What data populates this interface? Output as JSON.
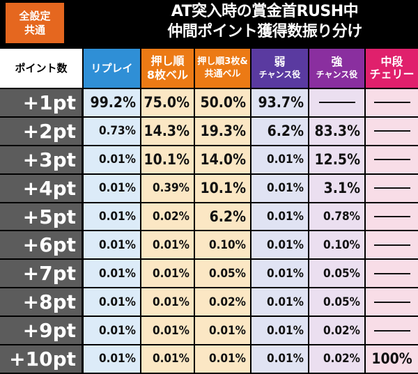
{
  "badge": {
    "line1": "全設定",
    "line2": "共通"
  },
  "title": {
    "line1": "AT突入時の賞金首RUSH中",
    "line2": "仲間ポイント獲得数振り分け"
  },
  "headers": {
    "label": "ポイント数",
    "replay": "リプレイ",
    "bell8_top": "押し順",
    "bell8_bottom": "8枚ベル",
    "bell3_top": "押し順3枚&",
    "bell3_bottom": "共通ベル",
    "weak_top": "弱",
    "weak_bottom": "チャンス役",
    "strong_top": "強",
    "strong_bottom": "チャンス役",
    "cherry_top": "中段",
    "cherry_bottom": "チェリー"
  },
  "rows": [
    {
      "pt": "+1pt",
      "replay": "99.2%",
      "bell8": "75.0%",
      "bell3": "50.0%",
      "weak": "93.7%",
      "strong": "",
      "cherry": ""
    },
    {
      "pt": "+2pt",
      "replay": "0.73%",
      "bell8": "14.3%",
      "bell3": "19.3%",
      "weak": "6.2%",
      "strong": "83.3%",
      "cherry": ""
    },
    {
      "pt": "+3pt",
      "replay": "0.01%",
      "bell8": "10.1%",
      "bell3": "14.0%",
      "weak": "0.01%",
      "strong": "12.5%",
      "cherry": ""
    },
    {
      "pt": "+4pt",
      "replay": "0.01%",
      "bell8": "0.39%",
      "bell3": "10.1%",
      "weak": "0.01%",
      "strong": "3.1%",
      "cherry": ""
    },
    {
      "pt": "+5pt",
      "replay": "0.01%",
      "bell8": "0.02%",
      "bell3": "6.2%",
      "weak": "0.01%",
      "strong": "0.78%",
      "cherry": ""
    },
    {
      "pt": "+6pt",
      "replay": "0.01%",
      "bell8": "0.01%",
      "bell3": "0.10%",
      "weak": "0.01%",
      "strong": "0.10%",
      "cherry": ""
    },
    {
      "pt": "+7pt",
      "replay": "0.01%",
      "bell8": "0.01%",
      "bell3": "0.05%",
      "weak": "0.01%",
      "strong": "0.05%",
      "cherry": ""
    },
    {
      "pt": "+8pt",
      "replay": "0.01%",
      "bell8": "0.01%",
      "bell3": "0.02%",
      "weak": "0.01%",
      "strong": "0.05%",
      "cherry": ""
    },
    {
      "pt": "+9pt",
      "replay": "0.01%",
      "bell8": "0.01%",
      "bell3": "0.01%",
      "weak": "0.01%",
      "strong": "0.02%",
      "cherry": ""
    },
    {
      "pt": "+10pt",
      "replay": "0.01%",
      "bell8": "0.01%",
      "bell3": "0.01%",
      "weak": "0.01%",
      "strong": "0.02%",
      "cherry": "100%"
    }
  ],
  "colors": {
    "badge": "#e5671f",
    "replay": "#2f8fd6",
    "bell": "#ec7a15",
    "weak": "#5a3aa0",
    "strong": "#8a2f9f",
    "cherry": "#e0206c"
  }
}
